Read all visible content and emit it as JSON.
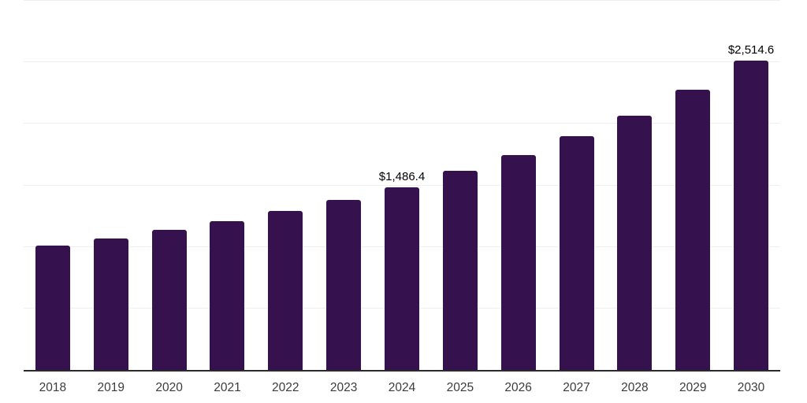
{
  "chart_data": {
    "type": "bar",
    "title": "",
    "xlabel": "",
    "ylabel": "",
    "categories": [
      "2018",
      "2019",
      "2020",
      "2021",
      "2022",
      "2023",
      "2024",
      "2025",
      "2026",
      "2027",
      "2028",
      "2029",
      "2030"
    ],
    "values": [
      1008,
      1070,
      1138,
      1208,
      1293,
      1380,
      1486.4,
      1617,
      1746,
      1897,
      2066,
      2275,
      2514.6
    ],
    "data_labels": [
      "",
      "",
      "",
      "",
      "",
      "",
      "$1,486.4",
      "",
      "",
      "",
      "",
      "",
      "$2,514.6"
    ],
    "ylim": [
      0,
      3000
    ],
    "gridline_values": [
      500,
      1000,
      1500,
      2000,
      2500,
      3000
    ],
    "grid": true,
    "legend": false,
    "colors": {
      "bar": "#35124E",
      "gridline": "#efefef",
      "axis_line": "#2b2b2b",
      "data_label_text": "#000000",
      "tick_label_text": "#3c3c3c",
      "background": "#ffffff"
    }
  }
}
